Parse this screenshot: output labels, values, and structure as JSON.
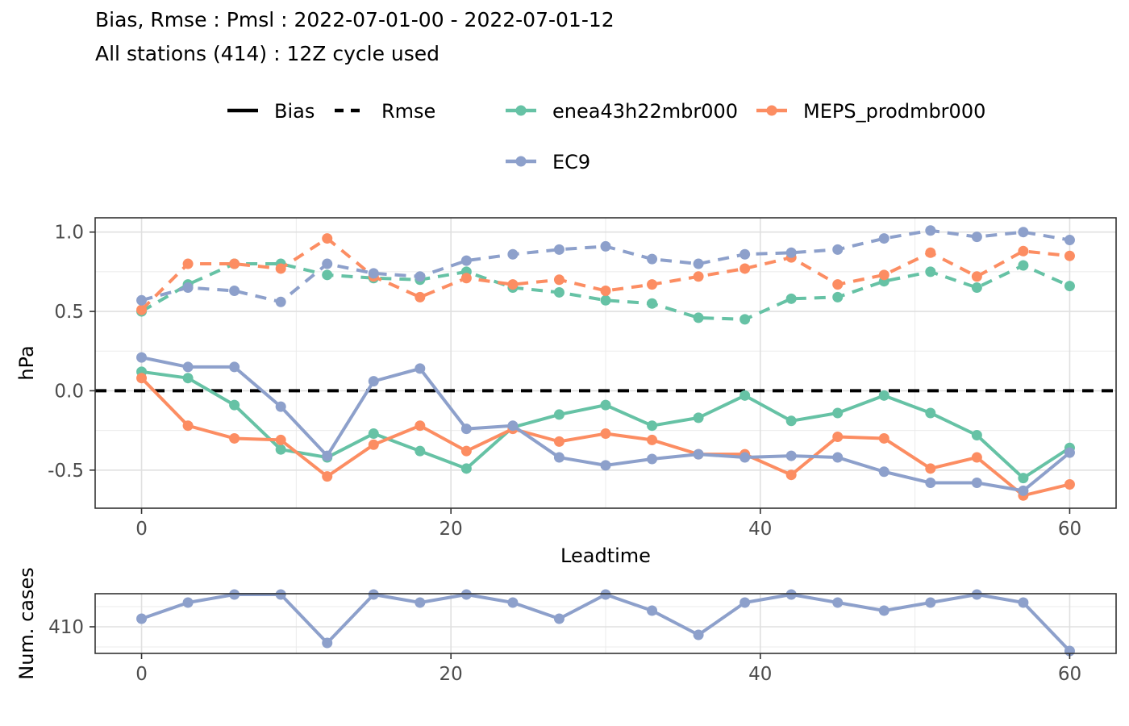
{
  "title": "Bias, Rmse : Pmsl : 2022-07-01-00 - 2022-07-01-12",
  "subtitle": "All stations (414) : 12Z cycle used",
  "legend": {
    "linetype": [
      {
        "label": "Bias",
        "dash": "solid"
      },
      {
        "label": "Rmse",
        "dash": "dashed"
      }
    ],
    "models": [
      {
        "label": "enea43h22mbr000",
        "color": "#66c2a5"
      },
      {
        "label": "MEPS_prodmbr000",
        "color": "#fc8d62"
      },
      {
        "label": "EC9",
        "color": "#8da0cb"
      }
    ]
  },
  "chart_data": [
    {
      "type": "line",
      "xlabel": "Leadtime",
      "ylabel": "hPa",
      "xlim": [
        -3,
        63
      ],
      "ylim": [
        -0.74,
        1.09
      ],
      "xticks": [
        0,
        20,
        40,
        60
      ],
      "yticks": [
        -0.5,
        0.0,
        0.5,
        1.0
      ],
      "ytick_labels": [
        "-0.5",
        "0.0",
        "0.5",
        "1.0"
      ],
      "grid": true,
      "hline": 0,
      "x": [
        0,
        3,
        6,
        9,
        12,
        15,
        18,
        21,
        24,
        27,
        30,
        33,
        36,
        39,
        42,
        45,
        48,
        51,
        54,
        57,
        60
      ],
      "series": [
        {
          "model": "enea43h22mbr000",
          "score": "Bias",
          "color": "#66c2a5",
          "values": [
            0.12,
            0.08,
            -0.09,
            -0.37,
            -0.42,
            -0.27,
            -0.38,
            -0.49,
            -0.23,
            -0.15,
            -0.09,
            -0.22,
            -0.17,
            -0.03,
            -0.19,
            -0.14,
            -0.03,
            -0.14,
            -0.28,
            -0.55,
            -0.36
          ]
        },
        {
          "model": "MEPS_prodmbr000",
          "score": "Bias",
          "color": "#fc8d62",
          "values": [
            0.08,
            -0.22,
            -0.3,
            -0.31,
            -0.54,
            -0.34,
            -0.22,
            -0.38,
            -0.24,
            -0.32,
            -0.27,
            -0.31,
            -0.4,
            -0.4,
            -0.53,
            -0.29,
            -0.3,
            -0.49,
            -0.42,
            -0.66,
            -0.59
          ]
        },
        {
          "model": "EC9",
          "score": "Bias",
          "color": "#8da0cb",
          "values": [
            0.21,
            0.15,
            0.15,
            -0.1,
            -0.41,
            0.06,
            0.14,
            -0.24,
            -0.22,
            -0.42,
            -0.47,
            -0.43,
            -0.4,
            -0.42,
            -0.41,
            -0.42,
            -0.51,
            -0.58,
            -0.58,
            -0.63,
            -0.39
          ]
        },
        {
          "model": "enea43h22mbr000",
          "score": "Rmse",
          "color": "#66c2a5",
          "values": [
            0.5,
            0.67,
            0.8,
            0.8,
            0.73,
            0.71,
            0.7,
            0.75,
            0.65,
            0.62,
            0.57,
            0.55,
            0.46,
            0.45,
            0.58,
            0.59,
            0.69,
            0.75,
            0.65,
            0.79,
            0.66
          ]
        },
        {
          "model": "MEPS_prodmbr000",
          "score": "Rmse",
          "color": "#fc8d62",
          "values": [
            0.51,
            0.8,
            0.8,
            0.77,
            0.96,
            0.72,
            0.59,
            0.71,
            0.67,
            0.7,
            0.63,
            0.67,
            0.72,
            0.77,
            0.84,
            0.67,
            0.73,
            0.87,
            0.72,
            0.88,
            0.85
          ]
        },
        {
          "model": "EC9",
          "score": "Rmse",
          "color": "#8da0cb",
          "values": [
            0.57,
            0.65,
            0.63,
            0.56,
            0.8,
            0.74,
            0.72,
            0.82,
            0.86,
            0.89,
            0.91,
            0.83,
            0.8,
            0.86,
            0.87,
            0.89,
            0.96,
            1.01,
            0.97,
            1.0,
            0.95
          ]
        }
      ]
    },
    {
      "type": "line",
      "xlabel": "",
      "ylabel": "Num. cases",
      "xlim": [
        -3,
        63
      ],
      "ylim": [
        406.7,
        414.1
      ],
      "xticks": [
        0,
        20,
        40,
        60
      ],
      "yticks": [
        410
      ],
      "ytick_labels": [
        "410"
      ],
      "grid": true,
      "x": [
        0,
        3,
        6,
        9,
        12,
        15,
        18,
        21,
        24,
        27,
        30,
        33,
        36,
        39,
        42,
        45,
        48,
        51,
        54,
        57,
        60
      ],
      "series": [
        {
          "model": "EC9",
          "color": "#8da0cb",
          "values": [
            411,
            413,
            414,
            414,
            408,
            414,
            413,
            414,
            413,
            411,
            414,
            412,
            409,
            413,
            414,
            413,
            412,
            413,
            414,
            413,
            407
          ]
        }
      ]
    }
  ]
}
